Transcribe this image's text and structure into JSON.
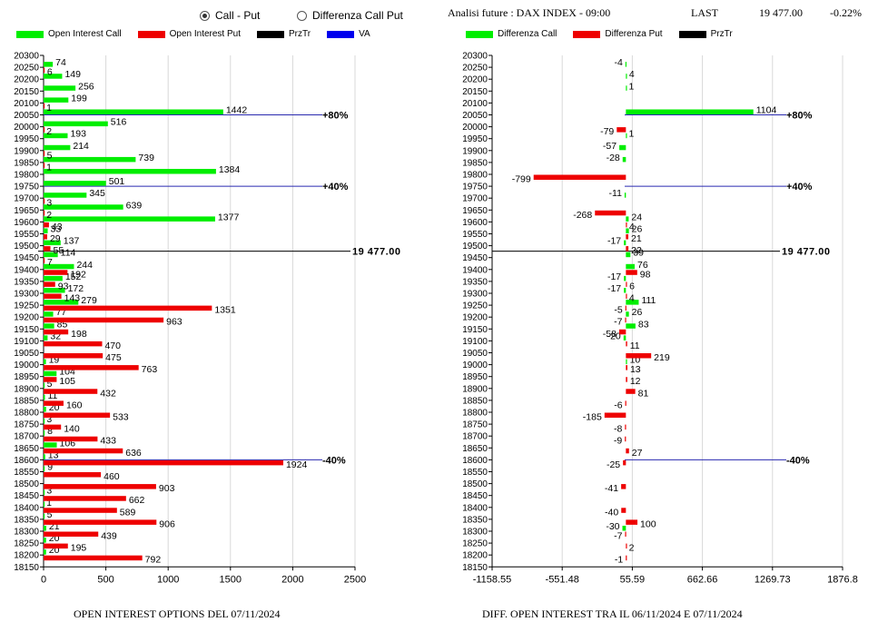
{
  "controls": {
    "radio_call_put": {
      "label": "Call - Put",
      "selected": true
    },
    "radio_diff": {
      "label": "Differenza Call Put",
      "selected": false
    }
  },
  "header": {
    "analysis": "Analisi future : DAX INDEX - 09:00",
    "last_label": "LAST",
    "last_value": "19 477.00",
    "change": "-0.22%"
  },
  "legend_left": [
    {
      "label": "Open Interest Call",
      "color": "#00ee00"
    },
    {
      "label": "Open Interest Put",
      "color": "#ee0000"
    },
    {
      "label": "PrzTr",
      "color": "#000000"
    },
    {
      "label": "VA",
      "color": "#0000ee"
    }
  ],
  "legend_right": [
    {
      "label": "Differenza Call",
      "color": "#00ee00"
    },
    {
      "label": "Differenza Put",
      "color": "#ee0000"
    },
    {
      "label": "PrzTr",
      "color": "#000000"
    }
  ],
  "chart_data": [
    {
      "type": "bar",
      "orientation": "horizontal",
      "title": "OPEN INTEREST OPTIONS DEL 07/11/2024",
      "strikes": [
        20300,
        20250,
        20200,
        20150,
        20100,
        20050,
        20000,
        19950,
        19900,
        19850,
        19800,
        19750,
        19700,
        19650,
        19600,
        19550,
        19500,
        19450,
        19400,
        19350,
        19300,
        19250,
        19200,
        19150,
        19100,
        19050,
        19000,
        18950,
        18900,
        18850,
        18800,
        18750,
        18700,
        18650,
        18600,
        18550,
        18500,
        18450,
        18400,
        18350,
        18300,
        18250,
        18200,
        18150
      ],
      "series": [
        {
          "name": "Open Interest Call",
          "color": "#00ee00",
          "values": [
            null,
            74,
            149,
            256,
            199,
            1442,
            516,
            193,
            214,
            739,
            1384,
            501,
            345,
            639,
            1377,
            33,
            137,
            114,
            244,
            152,
            172,
            279,
            77,
            85,
            32,
            null,
            19,
            104,
            5,
            11,
            20,
            3,
            8,
            106,
            13,
            9,
            null,
            3,
            1,
            5,
            21,
            20,
            20,
            null
          ]
        },
        {
          "name": "Open Interest Put",
          "color": "#ee0000",
          "values": [
            null,
            6,
            null,
            null,
            1,
            null,
            2,
            null,
            5,
            1,
            null,
            null,
            3,
            2,
            43,
            29,
            55,
            7,
            192,
            93,
            143,
            1351,
            963,
            198,
            470,
            475,
            763,
            105,
            432,
            160,
            533,
            140,
            433,
            636,
            1924,
            460,
            903,
            662,
            589,
            906,
            439,
            195,
            792,
            null
          ]
        }
      ],
      "xticks": [
        0,
        500,
        1000,
        1500,
        2000,
        2500
      ],
      "xlim": [
        0,
        2500
      ],
      "price_line": {
        "value": 19477,
        "label": "19477.00"
      },
      "va_lines": [
        {
          "strike": 20050,
          "label": "+80%"
        },
        {
          "strike": 19750,
          "label": "+40%"
        },
        {
          "strike": 18600,
          "label": "-40%"
        }
      ]
    },
    {
      "type": "bar",
      "orientation": "horizontal",
      "title": "DIFF. OPEN INTEREST TRA IL 06/11/2024 E 07/11/2024",
      "strikes": [
        20300,
        20250,
        20200,
        20150,
        20100,
        20050,
        20000,
        19950,
        19900,
        19850,
        19800,
        19750,
        19700,
        19650,
        19600,
        19550,
        19500,
        19450,
        19400,
        19350,
        19300,
        19250,
        19200,
        19150,
        19100,
        19050,
        19000,
        18950,
        18900,
        18850,
        18800,
        18750,
        18700,
        18650,
        18600,
        18550,
        18500,
        18450,
        18400,
        18350,
        18300,
        18250,
        18200,
        18150
      ],
      "series": [
        {
          "name": "Differenza Call",
          "color": "#00ee00",
          "values": [
            null,
            -4,
            4,
            1,
            null,
            1104,
            null,
            1,
            -57,
            -28,
            null,
            null,
            -11,
            null,
            24,
            26,
            -17,
            39,
            76,
            -17,
            -17,
            111,
            26,
            83,
            -20,
            null,
            10,
            null,
            null,
            null,
            null,
            null,
            null,
            null,
            null,
            null,
            null,
            null,
            null,
            null,
            -30,
            null,
            null,
            null
          ]
        },
        {
          "name": "Differenza Put",
          "color": "#ee0000",
          "values": [
            null,
            null,
            null,
            null,
            null,
            null,
            -79,
            null,
            null,
            null,
            -799,
            null,
            null,
            -268,
            4,
            21,
            22,
            null,
            98,
            6,
            4,
            -5,
            -7,
            -58,
            11,
            219,
            13,
            12,
            81,
            -6,
            -185,
            -8,
            -9,
            27,
            -25,
            null,
            -41,
            null,
            -40,
            100,
            -7,
            2,
            -1,
            null
          ]
        }
      ],
      "xticks": [
        "-1158.55",
        "-551.48",
        "55.59",
        "662.66",
        "1269.73",
        "1876.8"
      ],
      "xlim": [
        -1158.55,
        1876.8
      ],
      "price_line": {
        "value": 19477,
        "label": "19477.00"
      },
      "va_lines": [
        {
          "strike": 20050,
          "label": "+80%"
        },
        {
          "strike": 19750,
          "label": "+40%"
        },
        {
          "strike": 18600,
          "label": "-40%"
        }
      ]
    }
  ]
}
